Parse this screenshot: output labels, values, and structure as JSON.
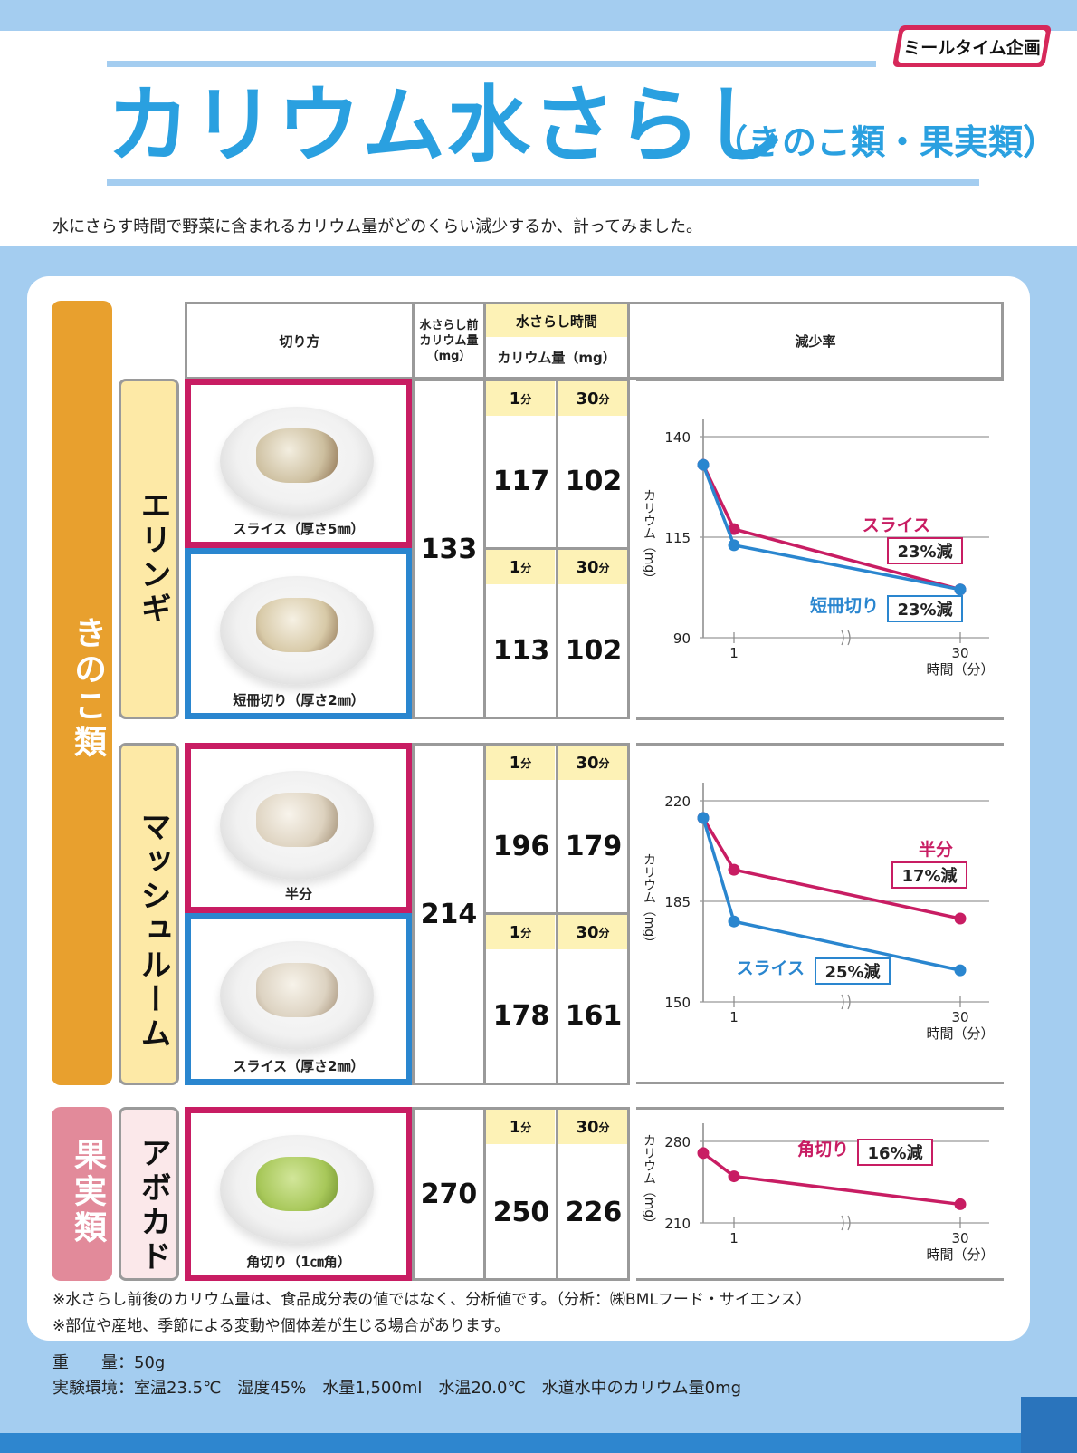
{
  "header": {
    "title": "カリウム水さらし",
    "subtitle": "（きのこ類・果実類）",
    "brand": "ミールタイム企画",
    "intro": "水にさらす時間で野菜に含まれるカリウム量がどのくらい減少するか、計ってみました。"
  },
  "table_header": {
    "cut": "切り方",
    "before_line1": "水さらし前",
    "before_line2": "カリウム量",
    "before_line3": "（mg）",
    "time": "水さらし時間",
    "potassium": "カリウム量（mg）",
    "reduction": "減少率"
  },
  "categories": {
    "mushroom": "きのこ類",
    "fruit": "果実類"
  },
  "time_labels": {
    "t1": "1",
    "t30": "30",
    "unit": "分"
  },
  "foods": {
    "eringi": {
      "name": "エリンギ",
      "before": "133",
      "cuts": [
        {
          "caption": "スライス（厚さ5㎜）",
          "v1": "117",
          "v30": "102"
        },
        {
          "caption": "短冊切り（厚さ2㎜）",
          "v1": "113",
          "v30": "102"
        }
      ]
    },
    "mushroom": {
      "name": "マッシュルーム",
      "before": "214",
      "cuts": [
        {
          "caption": "半分",
          "v1": "196",
          "v30": "179"
        },
        {
          "caption": "スライス（厚さ2㎜）",
          "v1": "178",
          "v30": "161"
        }
      ]
    },
    "avocado": {
      "name": "アボカド",
      "before": "270",
      "cuts": [
        {
          "caption": "角切り（1㎝角）",
          "v1": "250",
          "v30": "226"
        }
      ]
    }
  },
  "chart_data": [
    {
      "type": "line",
      "ylabel": "カリウム（mg）",
      "xlabel": "時間（分）",
      "x": [
        0,
        1,
        30
      ],
      "x_ticks": [
        "1",
        "30"
      ],
      "ylim": [
        90,
        140
      ],
      "y_ticks": [
        90,
        115,
        140
      ],
      "series": [
        {
          "name": "スライス",
          "values": [
            133,
            117,
            102
          ],
          "color": "#c81d63",
          "annotation": "23%減"
        },
        {
          "name": "短冊切り",
          "values": [
            133,
            113,
            102
          ],
          "color": "#2a86cf",
          "annotation": "23%減"
        }
      ]
    },
    {
      "type": "line",
      "ylabel": "カリウム（mg）",
      "xlabel": "時間（分）",
      "x": [
        0,
        1,
        30
      ],
      "x_ticks": [
        "1",
        "30"
      ],
      "ylim": [
        150,
        220
      ],
      "y_ticks": [
        150,
        185,
        220
      ],
      "series": [
        {
          "name": "半分",
          "values": [
            214,
            196,
            179
          ],
          "color": "#c81d63",
          "annotation": "17%減"
        },
        {
          "name": "スライス",
          "values": [
            214,
            178,
            161
          ],
          "color": "#2a86cf",
          "annotation": "25%減"
        }
      ]
    },
    {
      "type": "line",
      "ylabel": "カリウム（mg）",
      "xlabel": "時間（分）",
      "x": [
        0,
        1,
        30
      ],
      "x_ticks": [
        "1",
        "30"
      ],
      "ylim": [
        210,
        280
      ],
      "y_ticks": [
        210,
        280
      ],
      "series": [
        {
          "name": "角切り",
          "values": [
            270,
            250,
            226
          ],
          "color": "#c81d63",
          "annotation": "16%減"
        }
      ]
    }
  ],
  "notes": [
    "※水さらし前後のカリウム量は、食品成分表の値ではなく、分析値です。（分析：㈱BMLフード・サイエンス）",
    "※部位や産地、季節による変動や個体差が生じる場合があります。"
  ],
  "footer": {
    "weight": "重　　量：50g",
    "environment": "実験環境：室温23.5℃　湿度45%　水量1,500ml　水温20.0℃　水道水中のカリウム量0mg"
  },
  "colors": {
    "title": "#2aa0e0",
    "pink": "#c81d63",
    "blue": "#2a86cf",
    "orange": "#e8a02e",
    "rose": "#e28a9a"
  }
}
